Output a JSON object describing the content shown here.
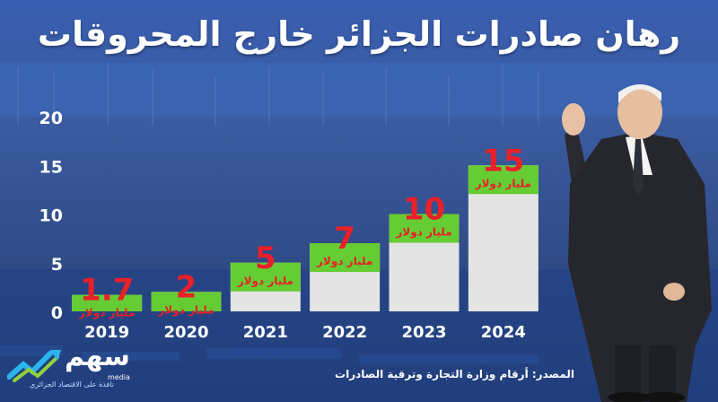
{
  "title": "رهان صادرات الجزائر خارج المحروقات",
  "source": "المصدر: أرقام وزارة التجارة وترقية الصادرات",
  "logo": {
    "name": "سهم",
    "sub": "media",
    "tagline": "نافذة على الاقتصاد الجزائري"
  },
  "colors": {
    "bar": "#e4e4e4",
    "cap": "#66cc33",
    "value_text": "#e8202a",
    "unit_text": "#e8202a",
    "axis_text": "#ffffff"
  },
  "chart_data": {
    "type": "bar",
    "title": "رهان صادرات الجزائر خارج المحروقات",
    "categories": [
      "2019",
      "2020",
      "2021",
      "2022",
      "2023",
      "2024"
    ],
    "values": [
      1.7,
      2,
      5,
      7,
      10,
      15
    ],
    "value_labels": [
      "1.7",
      "2",
      "5",
      "7",
      "10",
      "15"
    ],
    "unit_label": "مليار دولار",
    "yticks": [
      0,
      5,
      10,
      15,
      20
    ],
    "ylim": [
      0,
      20
    ],
    "grid": false,
    "legend": "none"
  }
}
